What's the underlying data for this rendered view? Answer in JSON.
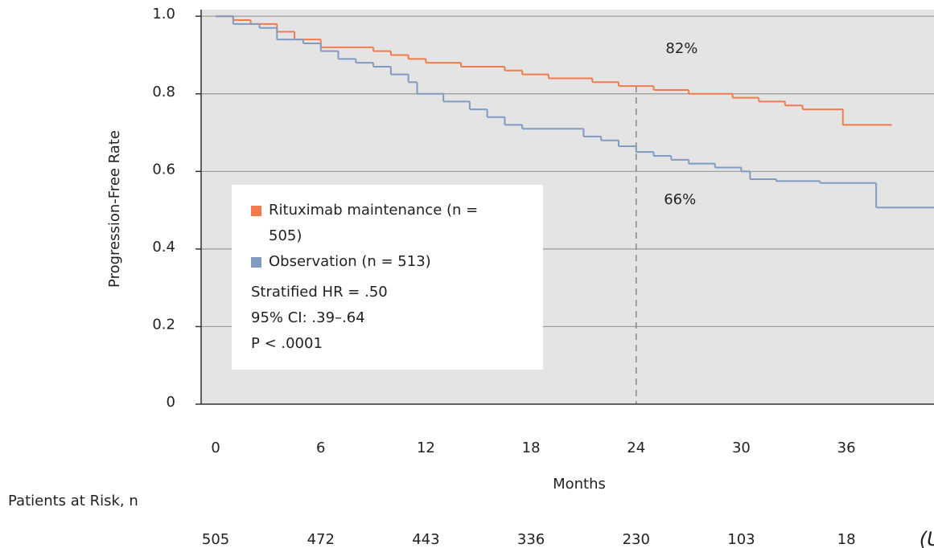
{
  "chart_data": {
    "type": "step",
    "y_label": "Progression-Free Rate",
    "x_label": "Months",
    "xlim": [
      -0.83,
      41
    ],
    "ylim": [
      0,
      1.017
    ],
    "xticks": [
      0,
      6,
      12,
      18,
      24,
      30,
      36
    ],
    "yticks": [
      0,
      0.2,
      0.4,
      0.6,
      0.8,
      {
        "value": 1,
        "label": "1.0"
      }
    ],
    "grid": true,
    "series": [
      {
        "name": "Rituximab maintenance (n = 505)",
        "color": "#f07b4c",
        "x": [
          0,
          1,
          2,
          3.5,
          4.5,
          6,
          9,
          10,
          11,
          12,
          14,
          16.5,
          17.5,
          19,
          21.5,
          23,
          25,
          27,
          29.5,
          31,
          32.5,
          33.5,
          35.8,
          38.6
        ],
        "values": [
          1.0,
          0.99,
          0.98,
          0.96,
          0.94,
          0.92,
          0.91,
          0.9,
          0.89,
          0.88,
          0.87,
          0.86,
          0.85,
          0.84,
          0.83,
          0.82,
          0.81,
          0.8,
          0.79,
          0.78,
          0.77,
          0.76,
          0.72,
          0.72
        ]
      },
      {
        "name": "Observation (n = 513)",
        "color": "#7f9cc0",
        "x": [
          0,
          1,
          2.5,
          3.5,
          5,
          6,
          7,
          8,
          9,
          10,
          11,
          11.5,
          13,
          14.5,
          15.5,
          16.5,
          17.5,
          21,
          22,
          23,
          24,
          25,
          26,
          27,
          28.5,
          30,
          30.5,
          32,
          34.5,
          37.7,
          41
        ],
        "values": [
          1.0,
          0.98,
          0.97,
          0.94,
          0.93,
          0.91,
          0.89,
          0.88,
          0.87,
          0.85,
          0.83,
          0.8,
          0.78,
          0.76,
          0.74,
          0.72,
          0.71,
          0.69,
          0.68,
          0.665,
          0.65,
          0.64,
          0.63,
          0.62,
          0.61,
          0.6,
          0.58,
          0.575,
          0.57,
          0.507,
          0.507
        ]
      }
    ],
    "reference_x": 24,
    "annotations": [
      {
        "text": "82%",
        "x": 26.6,
        "y": 0.915
      },
      {
        "text": "66%",
        "x": 26.5,
        "y": 0.526
      }
    ],
    "stats": [
      "Stratified HR = .50",
      "95% CI: .39–.64",
      "P < .0001"
    ],
    "at_risk": {
      "label": "Patients at Risk, n",
      "counts": [
        "505",
        "472",
        "443",
        "336",
        "230",
        "103",
        "18",
        "(UN"
      ]
    }
  }
}
